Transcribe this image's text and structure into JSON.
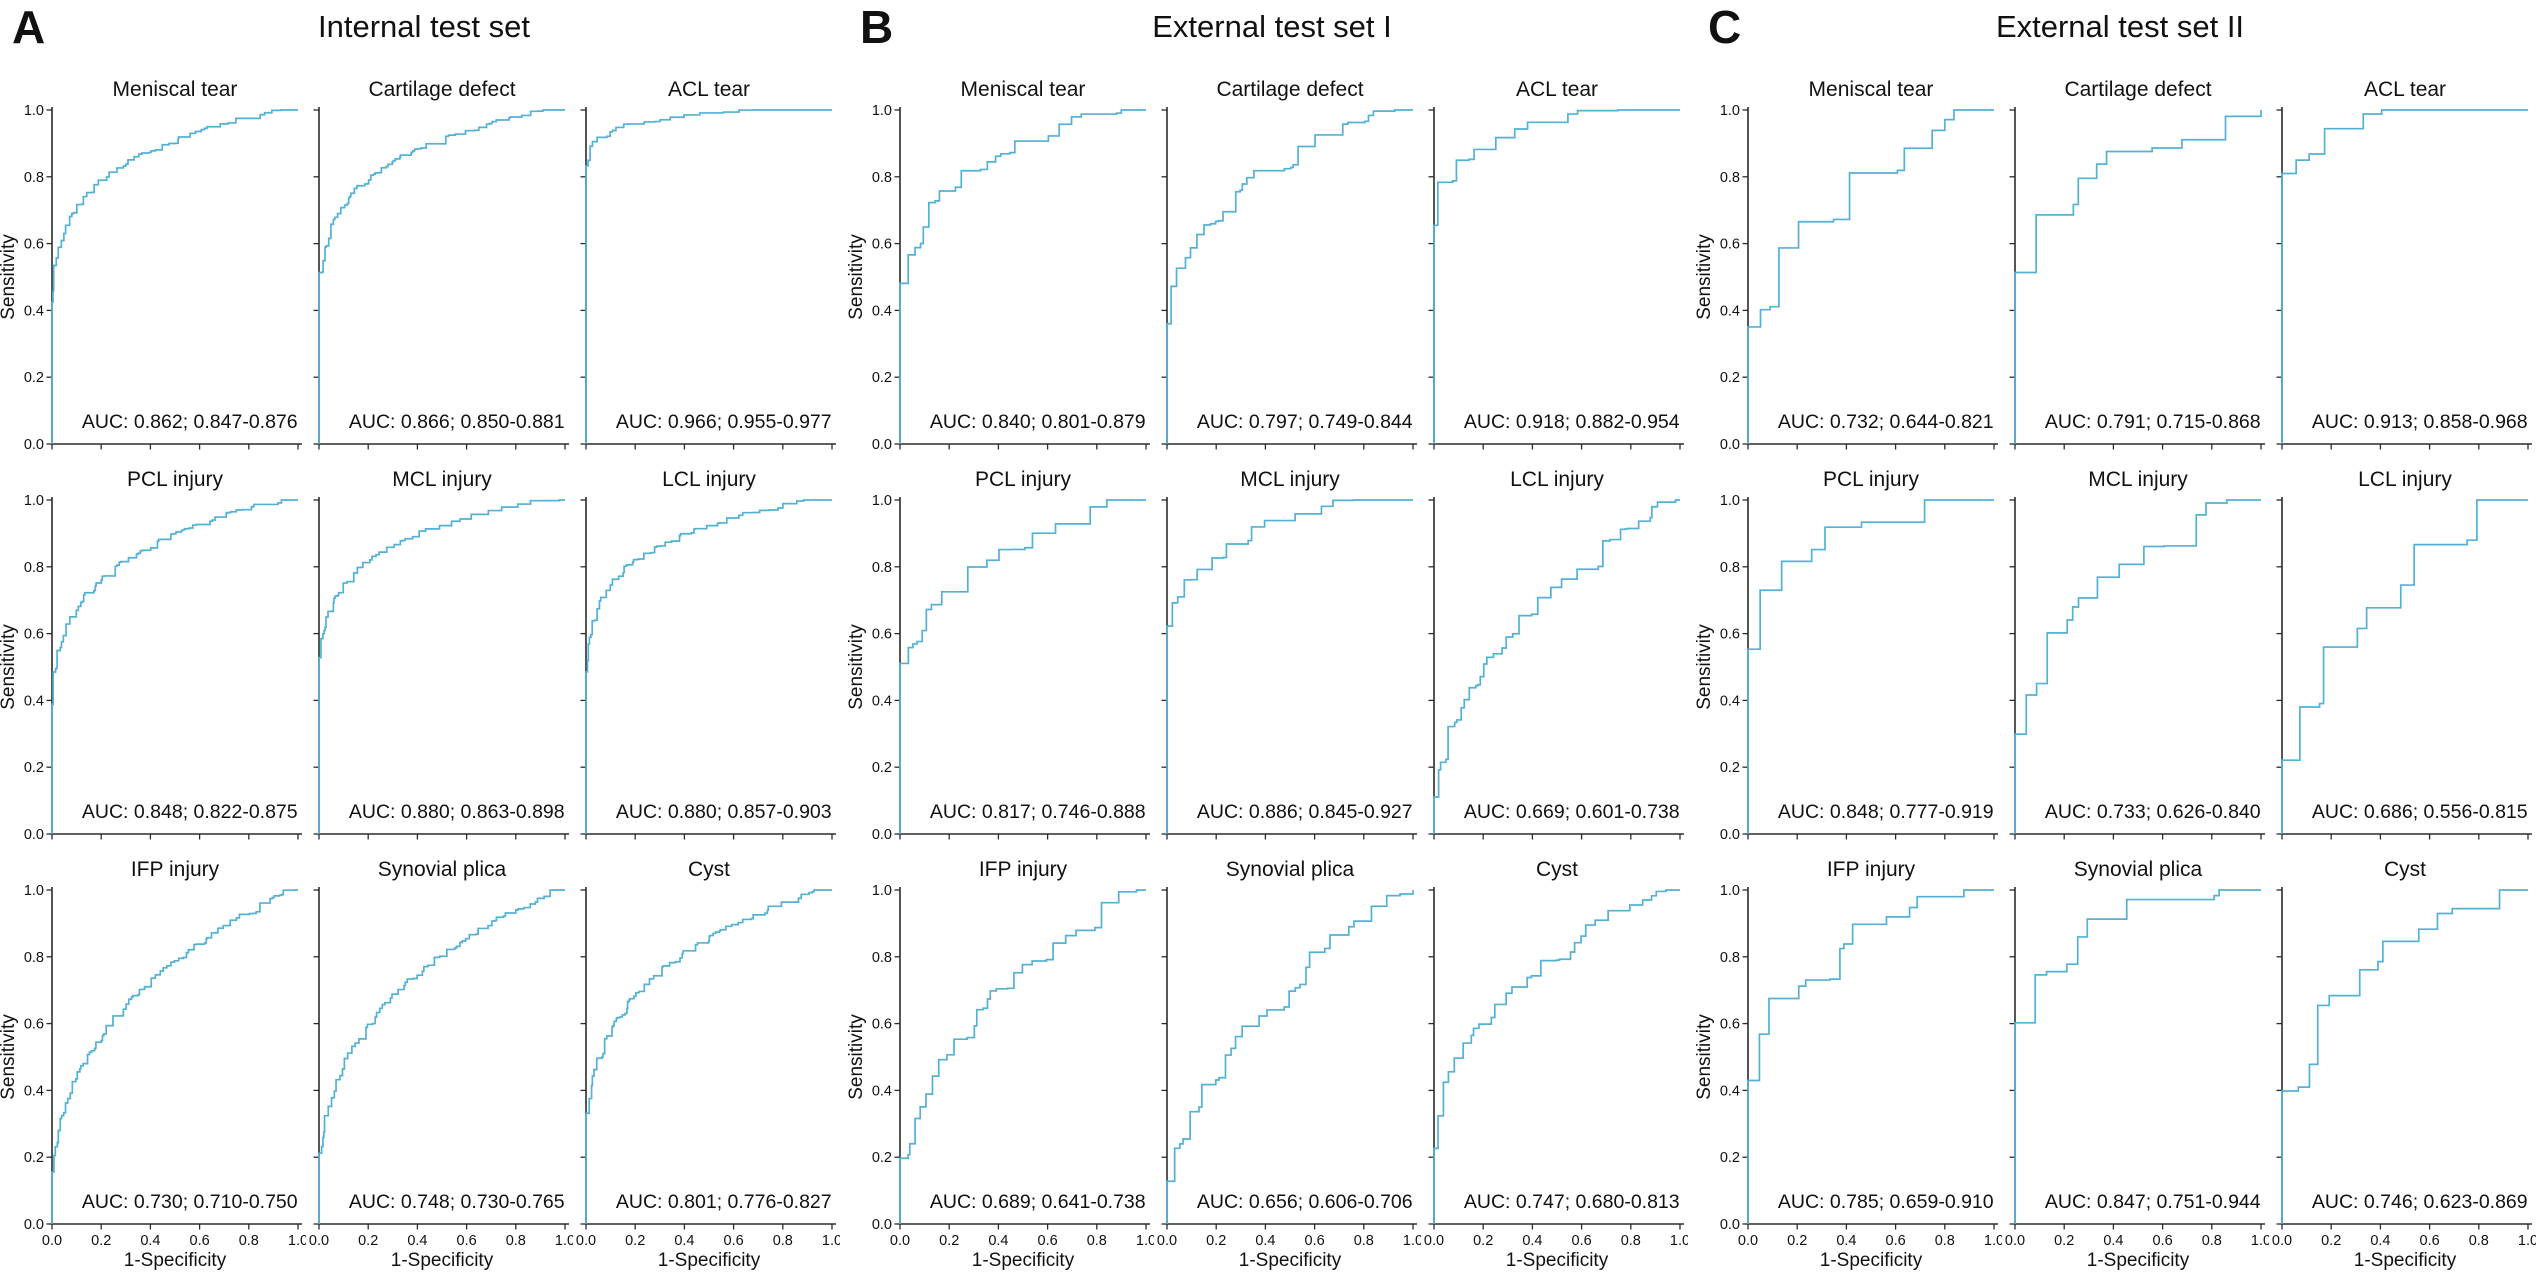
{
  "figure": {
    "curve_color": "#53b1d6",
    "axis_color": "#2b2b2b",
    "ylabel": "Sensitivity",
    "xlabel": "1-Specificity",
    "yticks": [
      "0.0",
      "0.2",
      "0.4",
      "0.6",
      "0.8",
      "1.0"
    ],
    "xticks": [
      "0.0",
      "0.2",
      "0.4",
      "0.6",
      "0.8",
      "1.0"
    ]
  },
  "panels": [
    {
      "letter": "A",
      "title": "Internal test set",
      "steps": 150,
      "plots": [
        {
          "title": "Meniscal tear",
          "auc": 0.862,
          "auc_label": "AUC: 0.862; 0.847-0.876"
        },
        {
          "title": "Cartilage defect",
          "auc": 0.866,
          "auc_label": "AUC: 0.866; 0.850-0.881"
        },
        {
          "title": "ACL tear",
          "auc": 0.966,
          "auc_label": "AUC: 0.966; 0.955-0.977"
        },
        {
          "title": "PCL injury",
          "auc": 0.848,
          "auc_label": "AUC: 0.848; 0.822-0.875"
        },
        {
          "title": "MCL injury",
          "auc": 0.88,
          "auc_label": "AUC: 0.880; 0.863-0.898"
        },
        {
          "title": "LCL injury",
          "auc": 0.88,
          "auc_label": "AUC: 0.880; 0.857-0.903"
        },
        {
          "title": "IFP injury",
          "auc": 0.73,
          "auc_label": "AUC: 0.730; 0.710-0.750"
        },
        {
          "title": "Synovial plica",
          "auc": 0.748,
          "auc_label": "AUC: 0.748; 0.730-0.765"
        },
        {
          "title": "Cyst",
          "auc": 0.801,
          "auc_label": "AUC: 0.801; 0.776-0.827"
        }
      ]
    },
    {
      "letter": "B",
      "title": "External test set I",
      "steps": 55,
      "plots": [
        {
          "title": "Meniscal tear",
          "auc": 0.84,
          "auc_label": "AUC: 0.840; 0.801-0.879"
        },
        {
          "title": "Cartilage defect",
          "auc": 0.797,
          "auc_label": "AUC: 0.797; 0.749-0.844"
        },
        {
          "title": "ACL tear",
          "auc": 0.918,
          "auc_label": "AUC: 0.918; 0.882-0.954"
        },
        {
          "title": "PCL injury",
          "auc": 0.817,
          "auc_label": "AUC: 0.817; 0.746-0.888"
        },
        {
          "title": "MCL injury",
          "auc": 0.886,
          "auc_label": "AUC: 0.886; 0.845-0.927"
        },
        {
          "title": "LCL injury",
          "auc": 0.669,
          "auc_label": "AUC: 0.669; 0.601-0.738"
        },
        {
          "title": "IFP injury",
          "auc": 0.689,
          "auc_label": "AUC: 0.689; 0.641-0.738"
        },
        {
          "title": "Synovial plica",
          "auc": 0.656,
          "auc_label": "AUC: 0.656; 0.606-0.706"
        },
        {
          "title": "Cyst",
          "auc": 0.747,
          "auc_label": "AUC: 0.747; 0.680-0.813"
        }
      ]
    },
    {
      "letter": "C",
      "title": "External test set II",
      "steps": 24,
      "plots": [
        {
          "title": "Meniscal tear",
          "auc": 0.732,
          "auc_label": "AUC: 0.732; 0.644-0.821"
        },
        {
          "title": "Cartilage defect",
          "auc": 0.791,
          "auc_label": "AUC: 0.791; 0.715-0.868"
        },
        {
          "title": "ACL tear",
          "auc": 0.913,
          "auc_label": "AUC: 0.913; 0.858-0.968"
        },
        {
          "title": "PCL injury",
          "auc": 0.848,
          "auc_label": "AUC: 0.848; 0.777-0.919"
        },
        {
          "title": "MCL injury",
          "auc": 0.733,
          "auc_label": "AUC: 0.733; 0.626-0.840"
        },
        {
          "title": "LCL injury",
          "auc": 0.686,
          "auc_label": "AUC: 0.686; 0.556-0.815"
        },
        {
          "title": "IFP injury",
          "auc": 0.785,
          "auc_label": "AUC: 0.785; 0.659-0.910"
        },
        {
          "title": "Synovial plica",
          "auc": 0.847,
          "auc_label": "AUC: 0.847; 0.751-0.944"
        },
        {
          "title": "Cyst",
          "auc": 0.746,
          "auc_label": "AUC: 0.746; 0.623-0.869"
        }
      ]
    }
  ],
  "chart_data": [
    {
      "type": "line",
      "subtype": "roc-curves",
      "title": "Internal test set",
      "xlabel": "1-Specificity",
      "ylabel": "Sensitivity",
      "xlim": [
        0.0,
        1.0
      ],
      "ylim": [
        0.0,
        1.0
      ],
      "xticks": [
        0.0,
        0.2,
        0.4,
        0.6,
        0.8,
        1.0
      ],
      "yticks": [
        0.0,
        0.2,
        0.4,
        0.6,
        0.8,
        1.0
      ],
      "grid": false,
      "legend": "none",
      "series": [
        {
          "name": "Meniscal tear",
          "auc": 0.862,
          "ci95": [
            0.847,
            0.876
          ]
        },
        {
          "name": "Cartilage defect",
          "auc": 0.866,
          "ci95": [
            0.85,
            0.881
          ]
        },
        {
          "name": "ACL tear",
          "auc": 0.966,
          "ci95": [
            0.955,
            0.977
          ]
        },
        {
          "name": "PCL injury",
          "auc": 0.848,
          "ci95": [
            0.822,
            0.875
          ]
        },
        {
          "name": "MCL injury",
          "auc": 0.88,
          "ci95": [
            0.863,
            0.898
          ]
        },
        {
          "name": "LCL injury",
          "auc": 0.88,
          "ci95": [
            0.857,
            0.903
          ]
        },
        {
          "name": "IFP injury",
          "auc": 0.73,
          "ci95": [
            0.71,
            0.75
          ]
        },
        {
          "name": "Synovial plica",
          "auc": 0.748,
          "ci95": [
            0.73,
            0.765
          ]
        },
        {
          "name": "Cyst",
          "auc": 0.801,
          "ci95": [
            0.776,
            0.827
          ]
        }
      ]
    },
    {
      "type": "line",
      "subtype": "roc-curves",
      "title": "External test set I",
      "xlabel": "1-Specificity",
      "ylabel": "Sensitivity",
      "xlim": [
        0.0,
        1.0
      ],
      "ylim": [
        0.0,
        1.0
      ],
      "xticks": [
        0.0,
        0.2,
        0.4,
        0.6,
        0.8,
        1.0
      ],
      "yticks": [
        0.0,
        0.2,
        0.4,
        0.6,
        0.8,
        1.0
      ],
      "grid": false,
      "legend": "none",
      "series": [
        {
          "name": "Meniscal tear",
          "auc": 0.84,
          "ci95": [
            0.801,
            0.879
          ]
        },
        {
          "name": "Cartilage defect",
          "auc": 0.797,
          "ci95": [
            0.749,
            0.844
          ]
        },
        {
          "name": "ACL tear",
          "auc": 0.918,
          "ci95": [
            0.882,
            0.954
          ]
        },
        {
          "name": "PCL injury",
          "auc": 0.817,
          "ci95": [
            0.746,
            0.888
          ]
        },
        {
          "name": "MCL injury",
          "auc": 0.886,
          "ci95": [
            0.845,
            0.927
          ]
        },
        {
          "name": "LCL injury",
          "auc": 0.669,
          "ci95": [
            0.601,
            0.738
          ]
        },
        {
          "name": "IFP injury",
          "auc": 0.689,
          "ci95": [
            0.641,
            0.738
          ]
        },
        {
          "name": "Synovial plica",
          "auc": 0.656,
          "ci95": [
            0.606,
            0.706
          ]
        },
        {
          "name": "Cyst",
          "auc": 0.747,
          "ci95": [
            0.68,
            0.813
          ]
        }
      ]
    },
    {
      "type": "line",
      "subtype": "roc-curves",
      "title": "External test set II",
      "xlabel": "1-Specificity",
      "ylabel": "Sensitivity",
      "xlim": [
        0.0,
        1.0
      ],
      "ylim": [
        0.0,
        1.0
      ],
      "xticks": [
        0.0,
        0.2,
        0.4,
        0.6,
        0.8,
        1.0
      ],
      "yticks": [
        0.0,
        0.2,
        0.4,
        0.6,
        0.8,
        1.0
      ],
      "grid": false,
      "legend": "none",
      "series": [
        {
          "name": "Meniscal tear",
          "auc": 0.732,
          "ci95": [
            0.644,
            0.821
          ]
        },
        {
          "name": "Cartilage defect",
          "auc": 0.791,
          "ci95": [
            0.715,
            0.868
          ]
        },
        {
          "name": "ACL tear",
          "auc": 0.913,
          "ci95": [
            0.858,
            0.968
          ]
        },
        {
          "name": "PCL injury",
          "auc": 0.848,
          "ci95": [
            0.777,
            0.919
          ]
        },
        {
          "name": "MCL injury",
          "auc": 0.733,
          "ci95": [
            0.626,
            0.84
          ]
        },
        {
          "name": "LCL injury",
          "auc": 0.686,
          "ci95": [
            0.556,
            0.815
          ]
        },
        {
          "name": "IFP injury",
          "auc": 0.785,
          "ci95": [
            0.659,
            0.91
          ]
        },
        {
          "name": "Synovial plica",
          "auc": 0.847,
          "ci95": [
            0.751,
            0.944
          ]
        },
        {
          "name": "Cyst",
          "auc": 0.746,
          "ci95": [
            0.623,
            0.869
          ]
        }
      ]
    }
  ]
}
